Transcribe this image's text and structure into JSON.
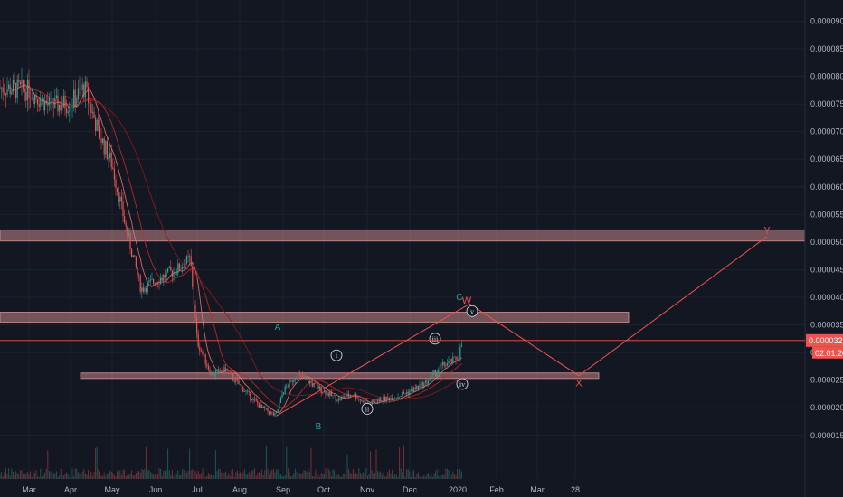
{
  "chart_data": {
    "type": "candlestick",
    "title": "",
    "x_ticks": [
      "Mar",
      "Apr",
      "May",
      "Jun",
      "Jul",
      "Aug",
      "Sep",
      "Oct",
      "Nov",
      "Dec",
      "2020",
      "Feb",
      "Mar",
      "28"
    ],
    "y_ticks": [
      "0.00009000",
      "0.00008500",
      "0.00008000",
      "0.00007500",
      "0.00007000",
      "0.00006500",
      "0.00006000",
      "0.00005500",
      "0.00005000",
      "0.00004500",
      "0.00004000",
      "0.00003500",
      "0.00003000",
      "0.00002500",
      "0.00002000",
      "0.00001500"
    ],
    "ylim": [
      1.12e-05,
      9.22e-05
    ],
    "last_price": "0.00003218",
    "countdown": "02:01:20",
    "price_path": [
      [
        "Mar",
        7.75e-05
      ],
      [
        "Mar 15",
        7.45e-05
      ],
      [
        "Apr",
        7.52e-05
      ],
      [
        "Apr 10",
        7.8e-05
      ],
      [
        "Apr 20",
        7e-05
      ],
      [
        "May",
        6.4e-05
      ],
      [
        "May 10",
        5.2e-05
      ],
      [
        "May 20",
        4.15e-05
      ],
      [
        "Jun",
        4.3e-05
      ],
      [
        "Jun 15",
        4.5e-05
      ],
      [
        "Jun 25",
        4.7e-05
      ],
      [
        "Jul",
        3.2e-05
      ],
      [
        "Jul 10",
        2.6e-05
      ],
      [
        "Jul 20",
        2.7e-05
      ],
      [
        "Aug",
        2.4e-05
      ],
      [
        "Aug 15",
        2e-05
      ],
      [
        "Aug 25",
        1.85e-05
      ],
      [
        "Sep",
        2.3e-05
      ],
      [
        "Sep 10",
        2.6e-05
      ],
      [
        "Sep 20",
        2.45e-05
      ],
      [
        "Oct",
        2.3e-05
      ],
      [
        "Oct 10",
        2.15e-05
      ],
      [
        "Oct 20",
        2.25e-05
      ],
      [
        "Nov",
        2.05e-05
      ],
      [
        "Nov 10",
        2.15e-05
      ],
      [
        "Nov 20",
        2.2e-05
      ],
      [
        "Dec",
        2.3e-05
      ],
      [
        "Dec 10",
        2.45e-05
      ],
      [
        "Dec 20",
        2.75e-05
      ],
      [
        "2020",
        2.9e-05
      ],
      [
        "2020 5",
        3.3e-05
      ]
    ],
    "zones": [
      {
        "from": 5.02e-05,
        "to": 5.22e-05
      },
      {
        "from": 3.55e-05,
        "to": 3.73e-05
      },
      {
        "from": 2.53e-05,
        "to": 2.63e-05
      }
    ],
    "wave_labels": [
      {
        "text": "A",
        "kind": "letter-green"
      },
      {
        "text": "B",
        "kind": "letter-green"
      },
      {
        "text": "C",
        "kind": "letter-green"
      },
      {
        "text": "W",
        "kind": "letter-red"
      },
      {
        "text": "X",
        "kind": "letter-red"
      },
      {
        "text": "Y",
        "kind": "letter-red"
      },
      {
        "text": "i",
        "kind": "circle"
      },
      {
        "text": "ii",
        "kind": "circle"
      },
      {
        "text": "iii",
        "kind": "circle"
      },
      {
        "text": "iv",
        "kind": "circle"
      },
      {
        "text": "v",
        "kind": "circle"
      }
    ],
    "colors": {
      "background": "#131722",
      "grid": "#1e222d",
      "axis_text": "#b2b5be",
      "up": "#26a69a",
      "down": "#ef5350",
      "zone": "#e8a0a0",
      "projection": "#ef5350",
      "label_green": "#26a69a",
      "label_red": "#ef5350",
      "price_tag": "#ef5350"
    }
  }
}
